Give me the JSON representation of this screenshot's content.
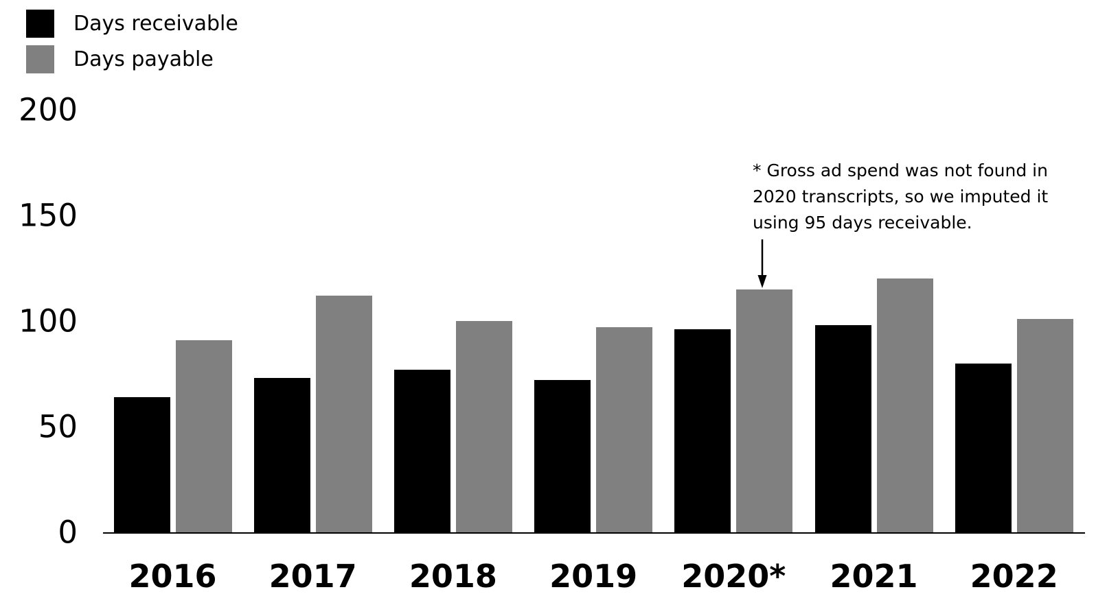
{
  "chart_data": {
    "type": "bar",
    "title": "",
    "xlabel": "",
    "ylabel": "",
    "categories": [
      "2016",
      "2017",
      "2018",
      "2019",
      "2020*",
      "2021",
      "2022"
    ],
    "series": [
      {
        "name": "Days receivable",
        "color": "#000000",
        "values": [
          64,
          73,
          77,
          72,
          96,
          98,
          80
        ]
      },
      {
        "name": "Days payable",
        "color": "#808080",
        "values": [
          91,
          112,
          100,
          97,
          115,
          120,
          101
        ]
      }
    ],
    "ylim": [
      0,
      200
    ],
    "yticks": [
      0,
      50,
      100,
      150,
      200
    ],
    "grid": false,
    "legend_position": "top-left",
    "annotation": {
      "lines": [
        "* Gross ad spend was not found in",
        "2020 transcripts, so we imputed it",
        "using 95 days receivable."
      ],
      "arrow_points_to": "top of 2020* Days payable bar"
    }
  },
  "legend": {
    "items": [
      {
        "label": "Days receivable",
        "color": "#000000"
      },
      {
        "label": "Days payable",
        "color": "#808080"
      }
    ]
  }
}
